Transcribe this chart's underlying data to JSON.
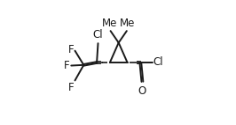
{
  "background": "#ffffff",
  "line_color": "#1a1a1a",
  "lw": 1.4,
  "fs": 8.5,
  "C2x": 0.435,
  "C2y": 0.5,
  "C1x": 0.575,
  "C1y": 0.5,
  "C3x": 0.505,
  "C3y": 0.66,
  "Me_left_label": "Me",
  "Me_right_label": "Me",
  "Cl_vinyl_label": "Cl",
  "Cl_acyl_label": "Cl",
  "O_label": "O",
  "F1_label": "F",
  "F2_label": "F",
  "F3_label": "F"
}
